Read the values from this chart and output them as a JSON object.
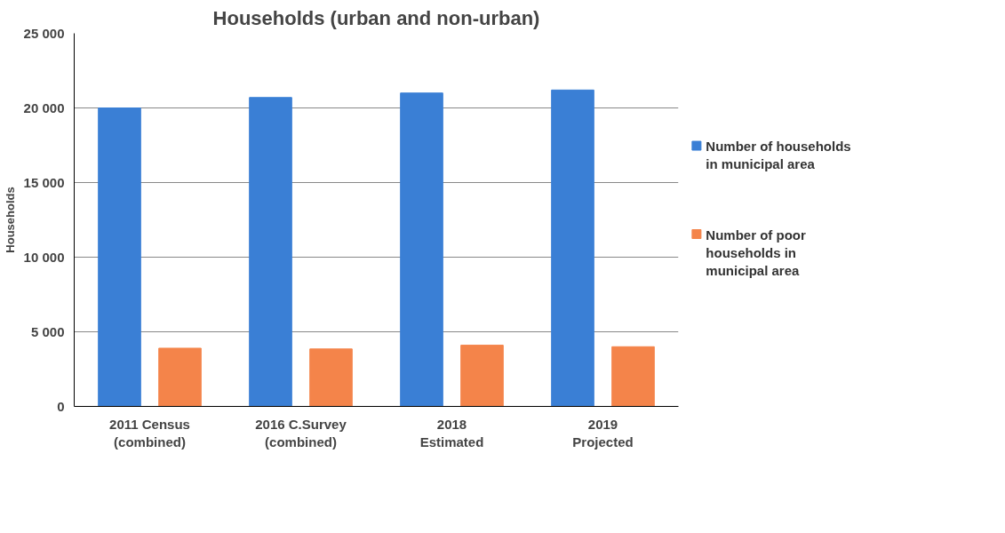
{
  "chart_data": {
    "type": "bar",
    "title": "Households (urban and non-urban)",
    "ylabel": "Households",
    "categories": [
      "2011 Census\n(combined)",
      "2016 C.Survey\n(combined)",
      "2018\nEstimated",
      "2019\nProjected"
    ],
    "series": [
      {
        "name": "Number of households in municipal area",
        "color": "#3a7fd5",
        "values": [
          20000,
          20700,
          21000,
          21200
        ]
      },
      {
        "name": "Number of poor households in municipal area",
        "color": "#f4844a",
        "values": [
          3900,
          3850,
          4100,
          4000
        ]
      }
    ],
    "ylim": [
      0,
      25000
    ],
    "yticks": [
      {
        "value": 0,
        "label": "0"
      },
      {
        "value": 5000,
        "label": "5 000"
      },
      {
        "value": 10000,
        "label": "10 000"
      },
      {
        "value": 15000,
        "label": "15 000"
      },
      {
        "value": 20000,
        "label": "20 000"
      },
      {
        "value": 25000,
        "label": "25 000"
      }
    ],
    "grid": "y",
    "legend": "right"
  }
}
